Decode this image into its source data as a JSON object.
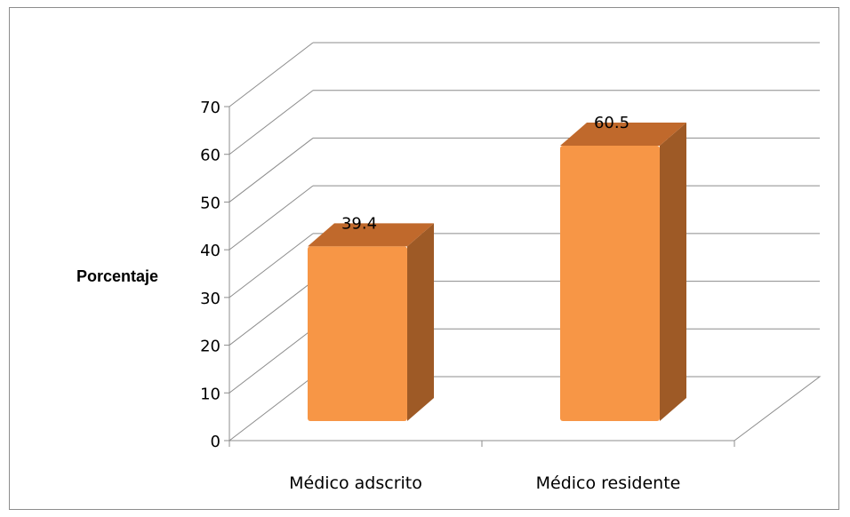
{
  "chart_data": {
    "type": "bar",
    "categories": [
      "Médico adscrito",
      "Médico residente"
    ],
    "values": [
      39.4,
      60.5
    ],
    "data_labels": [
      "39.4",
      "60.5"
    ],
    "xlabel": "",
    "ylabel": "Porcentaje",
    "ylim": [
      0,
      70
    ],
    "yticks": [
      "0",
      "10",
      "20",
      "30",
      "40",
      "50",
      "60",
      "70"
    ],
    "grid": true,
    "three_d": true,
    "colors": {
      "bar_front": "#F79646",
      "bar_top": "#C0692C",
      "bar_side": "#9E5A26",
      "grid": "#8c8c8c"
    }
  }
}
